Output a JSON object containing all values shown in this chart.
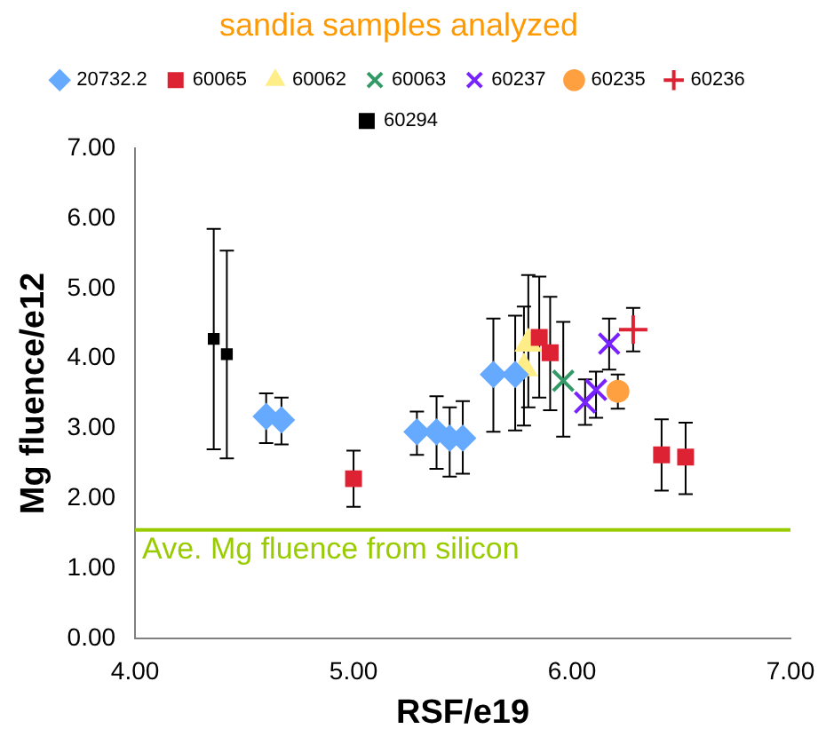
{
  "chart_data": {
    "type": "scatter",
    "title": "sandia samples analyzed",
    "xlabel": "RSF/e19",
    "ylabel": "Mg fluence/e12",
    "xlim": [
      4,
      7
    ],
    "xticks": [
      {
        "value": 4,
        "label": "4.00"
      },
      {
        "value": 5,
        "label": "5.00"
      },
      {
        "value": 6,
        "label": "6.00"
      },
      {
        "value": 7,
        "label": "7.00"
      }
    ],
    "ylim": [
      0,
      7
    ],
    "yticks": [
      {
        "value": 0,
        "label": "0.00"
      },
      {
        "value": 1,
        "label": "1.00"
      },
      {
        "value": 2,
        "label": "2.00"
      },
      {
        "value": 3,
        "label": "3.00"
      },
      {
        "value": 4,
        "label": "4.00"
      },
      {
        "value": 5,
        "label": "5.00"
      },
      {
        "value": 6,
        "label": "6.00"
      },
      {
        "value": 7,
        "label": "7.00"
      }
    ],
    "grid": false,
    "legend": "top",
    "ref_lines": [
      {
        "axis": "y",
        "value": 1.55,
        "label": "Ave. Mg fluence from silicon",
        "color": "#99cc00"
      }
    ],
    "series": [
      {
        "name": "20732.2",
        "color": "#66aaff",
        "marker": "diamond",
        "x": [
          4.6,
          4.67,
          5.29,
          5.38,
          5.44,
          5.5,
          5.64,
          5.74
        ],
        "values": [
          3.17,
          3.12,
          2.95,
          2.95,
          2.86,
          2.86,
          3.77,
          3.77
        ],
        "errors": [
          [
            2.79,
            3.5
          ],
          [
            2.77,
            3.44
          ],
          [
            2.62,
            3.24
          ],
          [
            2.42,
            3.46
          ],
          [
            2.31,
            3.3
          ],
          [
            2.35,
            3.39
          ],
          [
            2.95,
            4.57
          ],
          [
            2.97,
            4.61
          ]
        ]
      },
      {
        "name": "60065",
        "color": "#dd2233",
        "marker": "square",
        "x": [
          5.0,
          5.85,
          5.9,
          6.41,
          6.52
        ],
        "values": [
          2.28,
          4.3,
          4.08,
          2.62,
          2.59
        ],
        "errors": [
          [
            1.88,
            2.68
          ],
          [
            3.44,
            5.17
          ],
          [
            3.26,
            4.88
          ],
          [
            2.11,
            3.13
          ],
          [
            2.06,
            3.08
          ]
        ]
      },
      {
        "name": "60062",
        "color": "#ffee88",
        "marker": "triangle",
        "x": [
          5.8,
          5.78
        ],
        "values": [
          4.21,
          3.86
        ],
        "errors": [
          [
            3.3,
            5.19
          ],
          [
            3.04,
            4.74
          ]
        ]
      },
      {
        "name": "60063",
        "color": "#339966",
        "marker": "cross",
        "x": [
          5.96
        ],
        "values": [
          3.68
        ],
        "errors": [
          [
            2.88,
            4.52
          ]
        ]
      },
      {
        "name": "60237",
        "color": "#7722ff",
        "marker": "cross",
        "x": [
          6.17,
          6.06,
          6.11
        ],
        "values": [
          4.21,
          3.37,
          3.55
        ],
        "errors": [
          [
            3.84,
            4.57
          ],
          [
            3.05,
            3.7
          ],
          [
            3.15,
            3.81
          ]
        ]
      },
      {
        "name": "60235",
        "color": "#ffa040",
        "marker": "circle",
        "x": [
          6.21
        ],
        "values": [
          3.53
        ],
        "errors": [
          [
            3.28,
            3.77
          ]
        ]
      },
      {
        "name": "60236",
        "color": "#dd2233",
        "marker": "plus",
        "x": [
          6.28
        ],
        "values": [
          4.41
        ],
        "errors": [
          [
            4.1,
            4.72
          ]
        ]
      },
      {
        "name": "60294",
        "color": "#000000",
        "marker": "square",
        "x": [
          4.36,
          4.42
        ],
        "values": [
          4.28,
          4.06
        ],
        "errors": [
          [
            2.7,
            5.85
          ],
          [
            2.57,
            5.54
          ]
        ]
      }
    ]
  }
}
